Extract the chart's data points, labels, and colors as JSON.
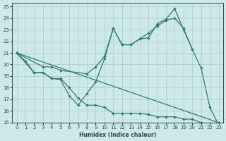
{
  "xlabel": "Humidex (Indice chaleur)",
  "bg_color": "#cce8e8",
  "grid_color": "#aacccc",
  "line_color": "#2e7d6e",
  "xlim": [
    -0.5,
    23.5
  ],
  "ylim": [
    15,
    25.3
  ],
  "xticks": [
    0,
    1,
    2,
    3,
    4,
    5,
    6,
    7,
    8,
    9,
    10,
    11,
    12,
    13,
    14,
    15,
    16,
    17,
    18,
    19,
    20,
    21,
    22,
    23
  ],
  "yticks": [
    15,
    16,
    17,
    18,
    19,
    20,
    21,
    22,
    23,
    24,
    25
  ],
  "line1_x": [
    0,
    1,
    2,
    3,
    4,
    5,
    6,
    7,
    8,
    9,
    10,
    11,
    12,
    13,
    14,
    15,
    16,
    17,
    18,
    19,
    20,
    21,
    22,
    23
  ],
  "line1_y": [
    21,
    20.3,
    19.3,
    19.3,
    18.8,
    18.7,
    17.3,
    16.5,
    17.5,
    18.5,
    20.5,
    23.1,
    21.7,
    21.7,
    22.2,
    22.3,
    23.5,
    23.9,
    24.8,
    23.0,
    21.3,
    19.7,
    16.3,
    14.8
  ],
  "line2_x": [
    0,
    3,
    4,
    5,
    8,
    9,
    10,
    11,
    12,
    13,
    14,
    15,
    16,
    17,
    18,
    19,
    20
  ],
  "line2_y": [
    21,
    19.8,
    19.8,
    19.5,
    19.2,
    19.8,
    20.7,
    23.1,
    21.7,
    21.7,
    22.2,
    22.7,
    23.3,
    23.8,
    24.0,
    23.1,
    21.3
  ],
  "line3_x": [
    0,
    2,
    3,
    4,
    5,
    6,
    7,
    8,
    9,
    10,
    11,
    12,
    13,
    14,
    15,
    16,
    17,
    18,
    19,
    20,
    21,
    22,
    23
  ],
  "line3_y": [
    21,
    19.3,
    19.3,
    18.8,
    18.8,
    18.0,
    17.1,
    16.5,
    16.5,
    16.3,
    15.8,
    15.8,
    15.8,
    15.8,
    15.7,
    15.5,
    15.5,
    15.5,
    15.3,
    15.3,
    15.0,
    14.9,
    14.8
  ],
  "line4_x": [
    0,
    23
  ],
  "line4_y": [
    21,
    15
  ]
}
